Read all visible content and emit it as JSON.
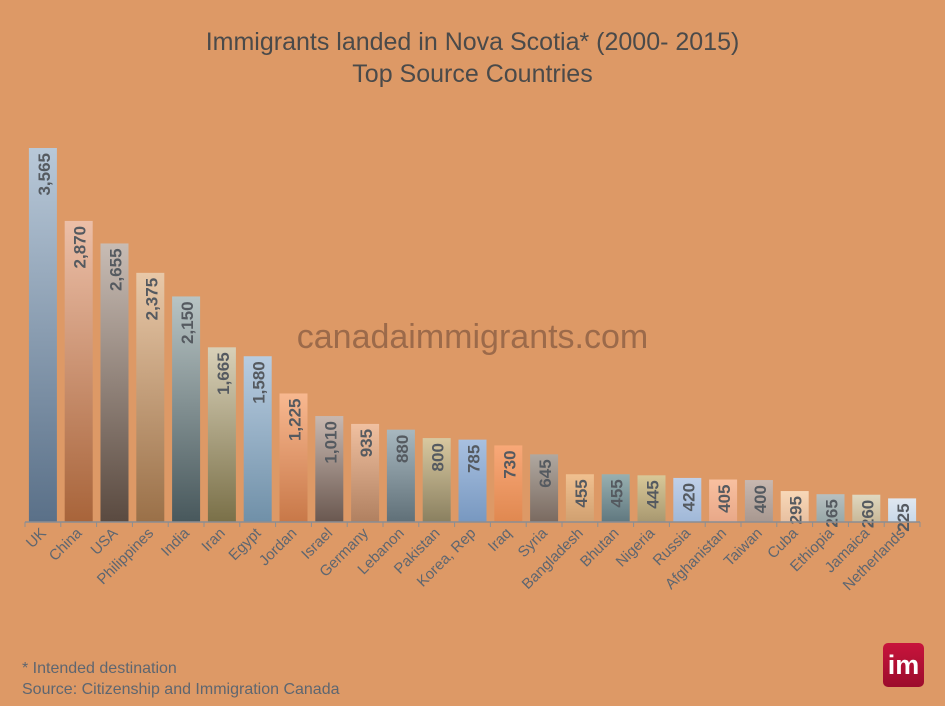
{
  "chart_data": {
    "type": "bar",
    "title": "Immigrants landed in Nova Scotia* (2000- 2015)",
    "subtitle": "Top Source Countries",
    "categories": [
      "UK",
      "China",
      "USA",
      "Philippines",
      "India",
      "Iran",
      "Egypt",
      "Jordan",
      "Israel",
      "Germany",
      "Lebanon",
      "Pakistan",
      "Korea, Rep",
      "Iraq",
      "Syria",
      "Bangladesh",
      "Bhutan",
      "Nigeria",
      "Russia",
      "Afghanistan",
      "Taiwan",
      "Cuba",
      "Ethiopia",
      "Jamaica",
      "Netherlands"
    ],
    "values": [
      3565,
      2870,
      2655,
      2375,
      2150,
      1665,
      1580,
      1225,
      1010,
      935,
      880,
      800,
      785,
      730,
      645,
      455,
      455,
      445,
      420,
      405,
      400,
      295,
      265,
      260,
      225
    ],
    "data_labels": [
      "3,565",
      "2,870",
      "2,655",
      "2,375",
      "2,150",
      "1,665",
      "1,580",
      "1,225",
      "1,010",
      "935",
      "880",
      "800",
      "785",
      "730",
      "645",
      "455",
      "455",
      "445",
      "420",
      "405",
      "400",
      "295",
      "265",
      "260",
      "225"
    ],
    "ylim": [
      0,
      3565
    ],
    "grid": false,
    "legend": "none",
    "xlabel": "",
    "ylabel": "",
    "bar_colors": [
      [
        "#b8c8d8",
        "#5a7088"
      ],
      [
        "#ecbfa8",
        "#a8643a"
      ],
      [
        "#c8bcb4",
        "#5a4a40"
      ],
      [
        "#e8c8a8",
        "#9a7048"
      ],
      [
        "#b8c4c4",
        "#48585c"
      ],
      [
        "#d8d0b8",
        "#7a7048"
      ],
      [
        "#b8cce0",
        "#7090a8"
      ],
      [
        "#f8b890",
        "#c87848"
      ],
      [
        "#c8b8b0",
        "#6a5850"
      ],
      [
        "#f0c0a0",
        "#b08060"
      ],
      [
        "#a8b8c0",
        "#607078"
      ],
      [
        "#d8c8a0",
        "#8a8060"
      ],
      [
        "#a8c0e0",
        "#7898c0"
      ],
      [
        "#f8a878",
        "#e08850"
      ],
      [
        "#b0a8a0",
        "#7a6a60"
      ],
      [
        "#f0c090",
        "#d0a070"
      ],
      [
        "#98b0b0",
        "#607880"
      ],
      [
        "#d8c898",
        "#a89870"
      ],
      [
        "#c0d0e8",
        "#a0b8d8"
      ],
      [
        "#f8c0a0",
        "#e8a888"
      ],
      [
        "#c8b8b0",
        "#a89890"
      ],
      [
        "#f8d8b8",
        "#e8c0a0"
      ],
      [
        "#b8c0c0",
        "#98a8a8"
      ],
      [
        "#e0d8c0",
        "#c8b898"
      ],
      [
        "#e0e8f0",
        "#c8d8e8"
      ]
    ]
  },
  "watermark": "canadaimmigrants.com",
  "notes": {
    "intended": "* Intended destination",
    "source": "Source: Citizenship and Immigration Canada"
  },
  "logo": "im",
  "colors": {
    "background": "#dd9966",
    "text": "#5e6670",
    "logo": "#c8143c"
  }
}
